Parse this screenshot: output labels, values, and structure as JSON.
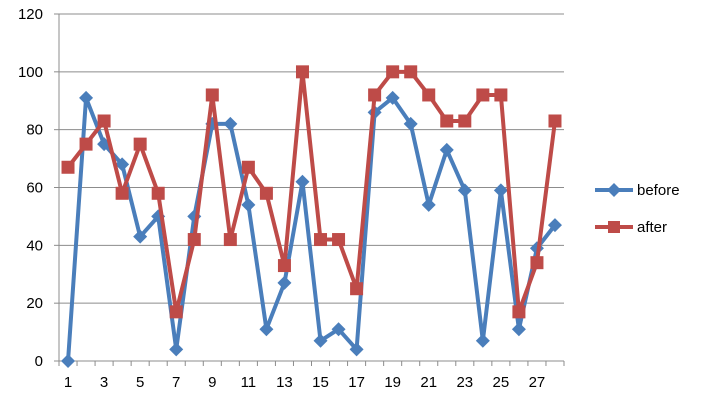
{
  "chart_data": {
    "type": "line",
    "x": [
      1,
      2,
      3,
      4,
      5,
      6,
      7,
      8,
      9,
      10,
      11,
      12,
      13,
      14,
      15,
      16,
      17,
      18,
      19,
      20,
      21,
      22,
      23,
      24,
      25,
      26,
      27,
      28
    ],
    "x_tick_labels": [
      "1",
      "3",
      "5",
      "7",
      "9",
      "11",
      "13",
      "15",
      "17",
      "19",
      "21",
      "23",
      "25",
      "27"
    ],
    "y_tick_labels": [
      "0",
      "20",
      "40",
      "60",
      "80",
      "100",
      "120"
    ],
    "ylim": [
      0,
      120
    ],
    "grid": "horizontal",
    "legend_position": "right",
    "series": [
      {
        "name": "before",
        "color": "#4a7ebb",
        "marker": "diamond",
        "values": [
          0,
          91,
          75,
          68,
          43,
          50,
          4,
          50,
          82,
          82,
          54,
          11,
          27,
          62,
          7,
          11,
          4,
          86,
          91,
          82,
          54,
          73,
          59,
          7,
          59,
          11,
          39,
          47
        ]
      },
      {
        "name": "after",
        "color": "#be4b48",
        "marker": "square",
        "values": [
          67,
          75,
          83,
          58,
          75,
          58,
          17,
          42,
          92,
          42,
          67,
          58,
          33,
          100,
          42,
          42,
          25,
          92,
          100,
          100,
          92,
          83,
          83,
          92,
          92,
          17,
          34,
          83
        ]
      }
    ]
  }
}
